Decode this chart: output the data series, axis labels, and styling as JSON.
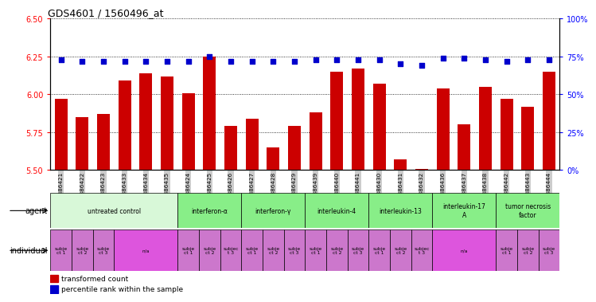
{
  "title": "GDS4601 / 1560496_at",
  "xlabels": [
    "GSM886421",
    "GSM886422",
    "GSM886423",
    "GSM886433",
    "GSM886434",
    "GSM886435",
    "GSM886424",
    "GSM886425",
    "GSM886426",
    "GSM886427",
    "GSM886428",
    "GSM886429",
    "GSM886439",
    "GSM886440",
    "GSM886441",
    "GSM886430",
    "GSM886431",
    "GSM886432",
    "GSM886436",
    "GSM886437",
    "GSM886438",
    "GSM886442",
    "GSM886443",
    "GSM886444"
  ],
  "bar_values": [
    5.97,
    5.85,
    5.87,
    6.09,
    6.14,
    6.12,
    6.01,
    6.25,
    5.79,
    5.84,
    5.65,
    5.79,
    5.88,
    6.15,
    6.17,
    6.07,
    5.57,
    5.51,
    6.04,
    5.8,
    6.05,
    5.97,
    5.92,
    6.15
  ],
  "percentile_values": [
    73,
    72,
    72,
    72,
    72,
    72,
    72,
    75,
    72,
    72,
    72,
    72,
    73,
    73,
    73,
    73,
    70,
    69,
    74,
    74,
    73,
    72,
    73,
    73
  ],
  "ylim_left": [
    5.5,
    6.5
  ],
  "ylim_right": [
    0,
    100
  ],
  "yticks_left": [
    5.5,
    5.75,
    6.0,
    6.25,
    6.5
  ],
  "yticks_right": [
    0,
    25,
    50,
    75,
    100
  ],
  "bar_color": "#cc0000",
  "dot_color": "#0000cc",
  "bar_bottom": 5.5,
  "agent_groups": [
    {
      "label": "untreated control",
      "start": 0,
      "end": 6,
      "color": "#d8f8d8"
    },
    {
      "label": "interferon-α",
      "start": 6,
      "end": 9,
      "color": "#88ee88"
    },
    {
      "label": "interferon-γ",
      "start": 9,
      "end": 12,
      "color": "#88ee88"
    },
    {
      "label": "interleukin-4",
      "start": 12,
      "end": 15,
      "color": "#88ee88"
    },
    {
      "label": "interleukin-13",
      "start": 15,
      "end": 18,
      "color": "#88ee88"
    },
    {
      "label": "interleukin-17\nA",
      "start": 18,
      "end": 21,
      "color": "#88ee88"
    },
    {
      "label": "tumor necrosis\nfactor",
      "start": 21,
      "end": 24,
      "color": "#88ee88"
    }
  ],
  "individual_groups": [
    {
      "label": "subje\nct 1",
      "start": 0,
      "end": 1,
      "color": "#cc77cc"
    },
    {
      "label": "subje\nct 2",
      "start": 1,
      "end": 2,
      "color": "#cc77cc"
    },
    {
      "label": "subje\nct 3",
      "start": 2,
      "end": 3,
      "color": "#cc77cc"
    },
    {
      "label": "n/a",
      "start": 3,
      "end": 6,
      "color": "#dd55dd"
    },
    {
      "label": "subje\nct 1",
      "start": 6,
      "end": 7,
      "color": "#cc77cc"
    },
    {
      "label": "subje\nct 2",
      "start": 7,
      "end": 8,
      "color": "#cc77cc"
    },
    {
      "label": "subjec\nt 3",
      "start": 8,
      "end": 9,
      "color": "#cc77cc"
    },
    {
      "label": "subje\nct 1",
      "start": 9,
      "end": 10,
      "color": "#cc77cc"
    },
    {
      "label": "subje\nct 2",
      "start": 10,
      "end": 11,
      "color": "#cc77cc"
    },
    {
      "label": "subje\nct 3",
      "start": 11,
      "end": 12,
      "color": "#cc77cc"
    },
    {
      "label": "subje\nct 1",
      "start": 12,
      "end": 13,
      "color": "#cc77cc"
    },
    {
      "label": "subje\nct 2",
      "start": 13,
      "end": 14,
      "color": "#cc77cc"
    },
    {
      "label": "subje\nct 3",
      "start": 14,
      "end": 15,
      "color": "#cc77cc"
    },
    {
      "label": "subje\nct 1",
      "start": 15,
      "end": 16,
      "color": "#cc77cc"
    },
    {
      "label": "subje\nct 2",
      "start": 16,
      "end": 17,
      "color": "#cc77cc"
    },
    {
      "label": "subjec\nt 3",
      "start": 17,
      "end": 18,
      "color": "#cc77cc"
    },
    {
      "label": "n/a",
      "start": 18,
      "end": 21,
      "color": "#dd55dd"
    },
    {
      "label": "subje\nct 1",
      "start": 21,
      "end": 22,
      "color": "#cc77cc"
    },
    {
      "label": "subje\nct 2",
      "start": 22,
      "end": 23,
      "color": "#cc77cc"
    },
    {
      "label": "subje\nct 3",
      "start": 23,
      "end": 24,
      "color": "#cc77cc"
    }
  ],
  "legend_items": [
    {
      "label": "transformed count",
      "color": "#cc0000"
    },
    {
      "label": "percentile rank within the sample",
      "color": "#0000cc"
    }
  ],
  "xticklabel_bg": "#cccccc",
  "background_color": "#ffffff",
  "fig_width": 7.71,
  "fig_height": 3.84,
  "dpi": 100
}
